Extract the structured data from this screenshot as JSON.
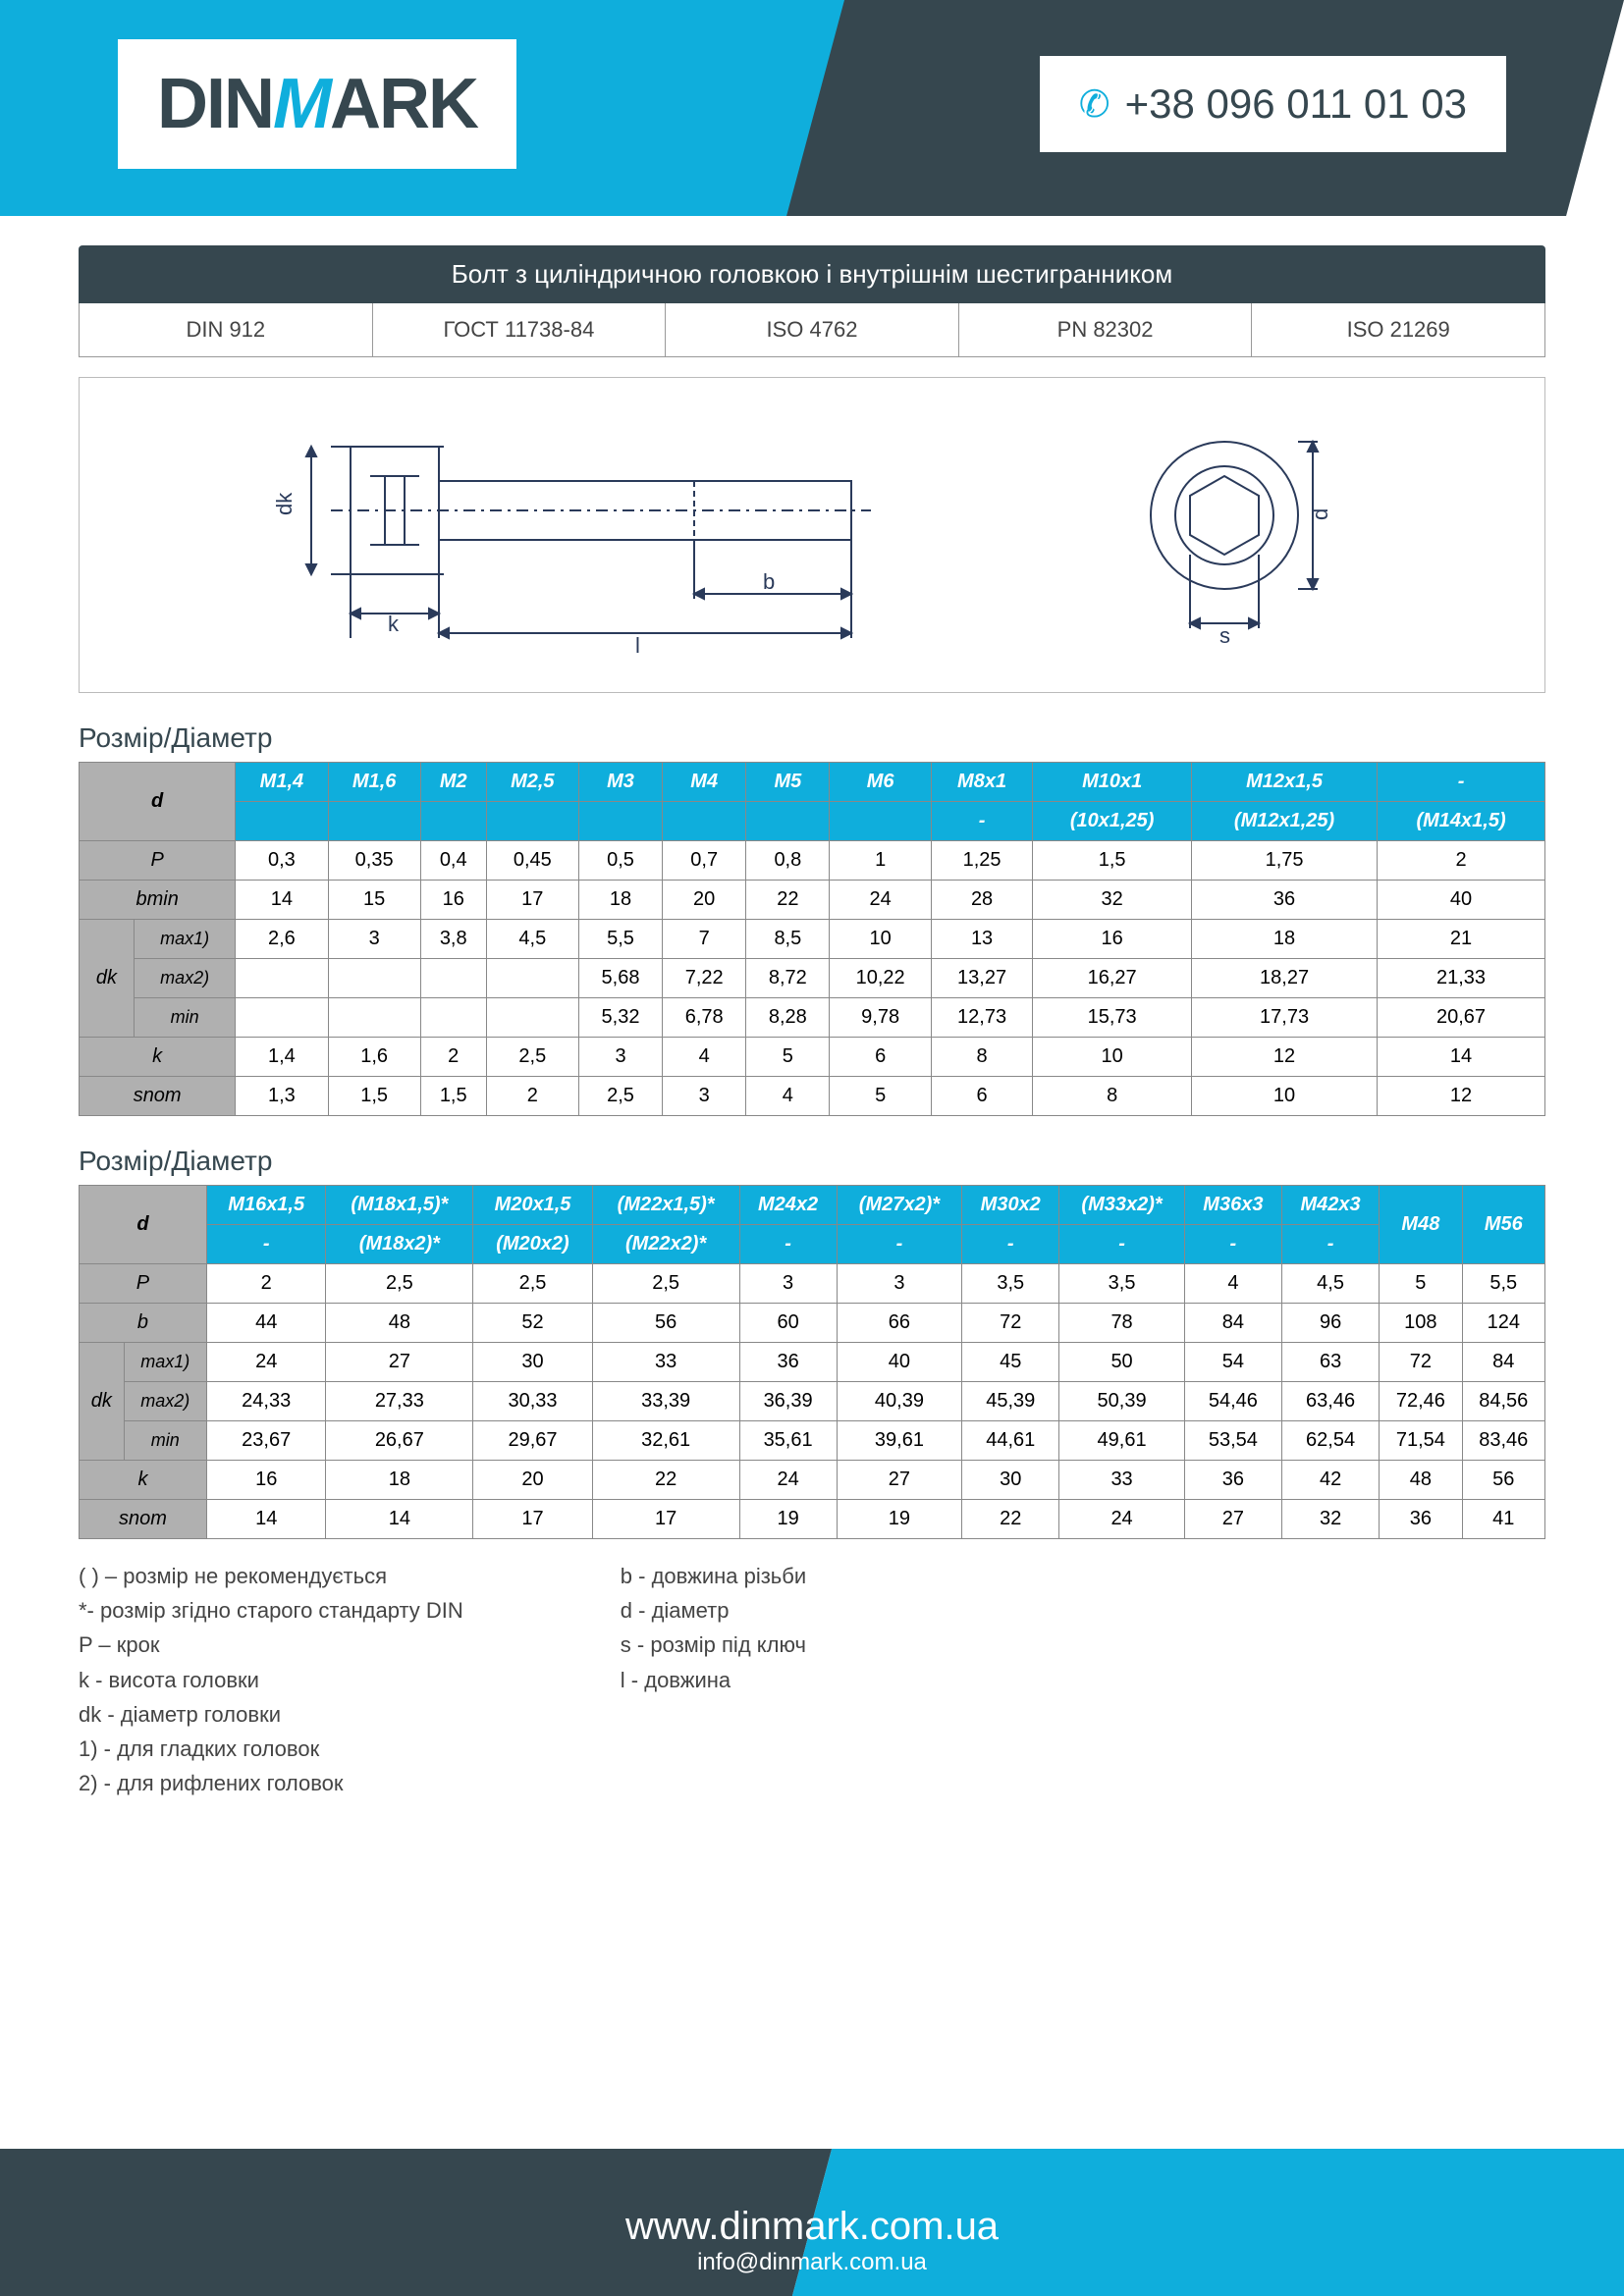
{
  "header": {
    "logo_pre": "DIN",
    "logo_mid": "M",
    "logo_post": "ARK",
    "phone": "+38 096 011 01 03"
  },
  "title": "Болт з циліндричною головкою і внутрішнім шестигранником",
  "standards": [
    "DIN 912",
    "ГОСТ 11738-84",
    "ISO 4762",
    "PN 82302",
    "ISO 21269"
  ],
  "diagram": {
    "labels": {
      "dk": "dk",
      "k": "k",
      "l": "l",
      "b": "b",
      "d": "d",
      "s": "s"
    },
    "colors": {
      "stroke": "#2a3a5a",
      "fill": "#ffffff"
    }
  },
  "section_title": "Розмір/Діаметр",
  "table1": {
    "d_row1": [
      "M1,4",
      "M1,6",
      "M2",
      "M2,5",
      "M3",
      "M4",
      "M5",
      "M6",
      "M8x1",
      "M10x1",
      "M12x1,5",
      "-"
    ],
    "d_row2": [
      "",
      "",
      "",
      "",
      "",
      "",
      "",
      "",
      "-",
      "(10x1,25)",
      "(M12x1,25)",
      "(M14x1,5)"
    ],
    "rows": [
      {
        "label": "P",
        "sub": "",
        "vals": [
          "0,3",
          "0,35",
          "0,4",
          "0,45",
          "0,5",
          "0,7",
          "0,8",
          "1",
          "1,25",
          "1,5",
          "1,75",
          "2"
        ]
      },
      {
        "label": "bmin",
        "sub": "",
        "vals": [
          "14",
          "15",
          "16",
          "17",
          "18",
          "20",
          "22",
          "24",
          "28",
          "32",
          "36",
          "40"
        ]
      },
      {
        "label": "dk",
        "sub": "max1)",
        "vals": [
          "2,6",
          "3",
          "3,8",
          "4,5",
          "5,5",
          "7",
          "8,5",
          "10",
          "13",
          "16",
          "18",
          "21"
        ]
      },
      {
        "label": "",
        "sub": "max2)",
        "vals": [
          "",
          "",
          "",
          "",
          "5,68",
          "7,22",
          "8,72",
          "10,22",
          "13,27",
          "16,27",
          "18,27",
          "21,33"
        ]
      },
      {
        "label": "",
        "sub": "min",
        "vals": [
          "",
          "",
          "",
          "",
          "5,32",
          "6,78",
          "8,28",
          "9,78",
          "12,73",
          "15,73",
          "17,73",
          "20,67"
        ]
      },
      {
        "label": "k",
        "sub": "",
        "vals": [
          "1,4",
          "1,6",
          "2",
          "2,5",
          "3",
          "4",
          "5",
          "6",
          "8",
          "10",
          "12",
          "14"
        ]
      },
      {
        "label": "snom",
        "sub": "",
        "vals": [
          "1,3",
          "1,5",
          "1,5",
          "2",
          "2,5",
          "3",
          "4",
          "5",
          "6",
          "8",
          "10",
          "12"
        ]
      }
    ]
  },
  "table2": {
    "d_row1": [
      "M16x1,5",
      "(M18x1,5)*",
      "M20x1,5",
      "(M22x1,5)*",
      "M24x2",
      "(M27x2)*",
      "M30x2",
      "(M33x2)*",
      "M36x3",
      "M42x3",
      "M48",
      "M56"
    ],
    "d_row2": [
      "-",
      "(M18x2)*",
      "(M20x2)",
      "(M22x2)*",
      "-",
      "-",
      "-",
      "-",
      "-",
      "-",
      "",
      ""
    ],
    "rows": [
      {
        "label": "P",
        "sub": "",
        "vals": [
          "2",
          "2,5",
          "2,5",
          "2,5",
          "3",
          "3",
          "3,5",
          "3,5",
          "4",
          "4,5",
          "5",
          "5,5"
        ]
      },
      {
        "label": "b",
        "sub": "",
        "vals": [
          "44",
          "48",
          "52",
          "56",
          "60",
          "66",
          "72",
          "78",
          "84",
          "96",
          "108",
          "124"
        ]
      },
      {
        "label": "dk",
        "sub": "max1)",
        "vals": [
          "24",
          "27",
          "30",
          "33",
          "36",
          "40",
          "45",
          "50",
          "54",
          "63",
          "72",
          "84"
        ]
      },
      {
        "label": "",
        "sub": "max2)",
        "vals": [
          "24,33",
          "27,33",
          "30,33",
          "33,39",
          "36,39",
          "40,39",
          "45,39",
          "50,39",
          "54,46",
          "63,46",
          "72,46",
          "84,56"
        ]
      },
      {
        "label": "",
        "sub": "min",
        "vals": [
          "23,67",
          "26,67",
          "29,67",
          "32,61",
          "35,61",
          "39,61",
          "44,61",
          "49,61",
          "53,54",
          "62,54",
          "71,54",
          "83,46"
        ]
      },
      {
        "label": "k",
        "sub": "",
        "vals": [
          "16",
          "18",
          "20",
          "22",
          "24",
          "27",
          "30",
          "33",
          "36",
          "42",
          "48",
          "56"
        ]
      },
      {
        "label": "snom",
        "sub": "",
        "vals": [
          "14",
          "14",
          "17",
          "17",
          "19",
          "19",
          "22",
          "24",
          "27",
          "32",
          "36",
          "41"
        ]
      }
    ]
  },
  "legend": {
    "left": [
      "( ) – розмір не рекомендується",
      "*- розмір згідно старого стандарту  DIN",
      "P – крок",
      "k - висота головки",
      "dk - діаметр головки",
      "1) - для гладких головок",
      "2) - для рифлених головок"
    ],
    "right": [
      "b - довжина різьби",
      "d - діаметр",
      "s - розмір під ключ",
      "l - довжина"
    ]
  },
  "footer": {
    "url": "www.dinmark.com.ua",
    "email": "info@dinmark.com.ua"
  },
  "colors": {
    "brand_blue": "#0faedc",
    "brand_dark": "#36474f",
    "table_header": "#0faedc",
    "table_rowlabel": "#b0b0b0",
    "border": "#888888"
  }
}
